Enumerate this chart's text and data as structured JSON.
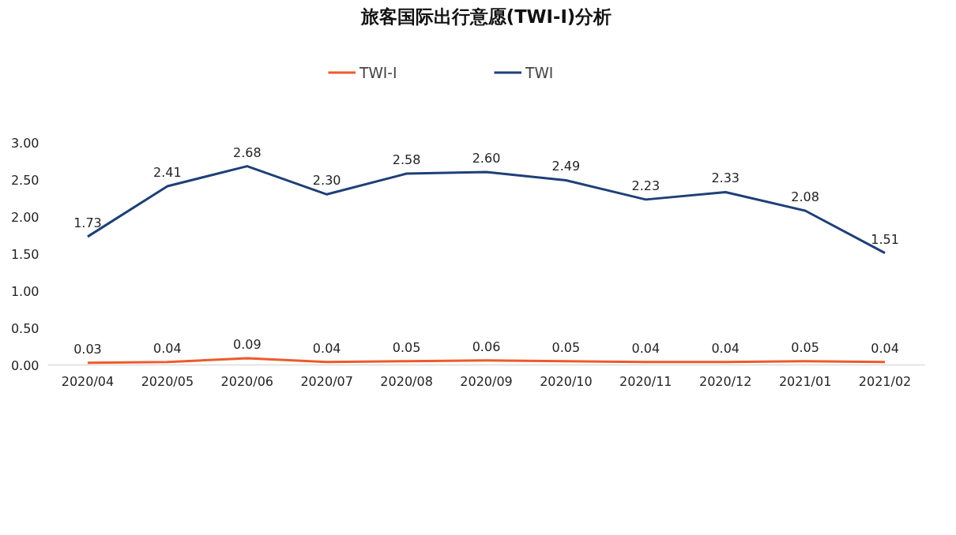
{
  "chart_data": {
    "type": "line",
    "title": "旅客国际出行意愿(TWI-I)分析",
    "categories": [
      "2020/04",
      "2020/05",
      "2020/06",
      "2020/07",
      "2020/08",
      "2020/09",
      "2020/10",
      "2020/11",
      "2020/12",
      "2021/01",
      "2021/02"
    ],
    "series": [
      {
        "name": "TWI-I",
        "color": "#ee5a2a",
        "values": [
          0.03,
          0.04,
          0.09,
          0.04,
          0.05,
          0.06,
          0.05,
          0.04,
          0.04,
          0.05,
          0.04
        ],
        "value_labels": [
          "0.03",
          "0.04",
          "0.09",
          "0.04",
          "0.05",
          "0.06",
          "0.05",
          "0.04",
          "0.04",
          "0.05",
          "0.04"
        ]
      },
      {
        "name": "TWI",
        "color": "#1f3f77",
        "values": [
          1.73,
          2.41,
          2.68,
          2.3,
          2.58,
          2.6,
          2.49,
          2.23,
          2.33,
          2.08,
          1.51
        ],
        "value_labels": [
          "1.73",
          "2.41",
          "2.68",
          "2.30",
          "2.58",
          "2.60",
          "2.49",
          "2.23",
          "2.33",
          "2.08",
          "1.51"
        ]
      }
    ],
    "ylim": [
      0,
      3
    ],
    "yticks": [
      {
        "value": 0,
        "label": "0.00"
      },
      {
        "value": 0.5,
        "label": "0.50"
      },
      {
        "value": 1,
        "label": "1.00"
      },
      {
        "value": 1.5,
        "label": "1.50"
      },
      {
        "value": 2,
        "label": "2.00"
      },
      {
        "value": 2.5,
        "label": "2.50"
      },
      {
        "value": 3,
        "label": "3.00"
      }
    ],
    "grid": false,
    "legend": "top",
    "marker": "none",
    "line_style": "solid"
  }
}
